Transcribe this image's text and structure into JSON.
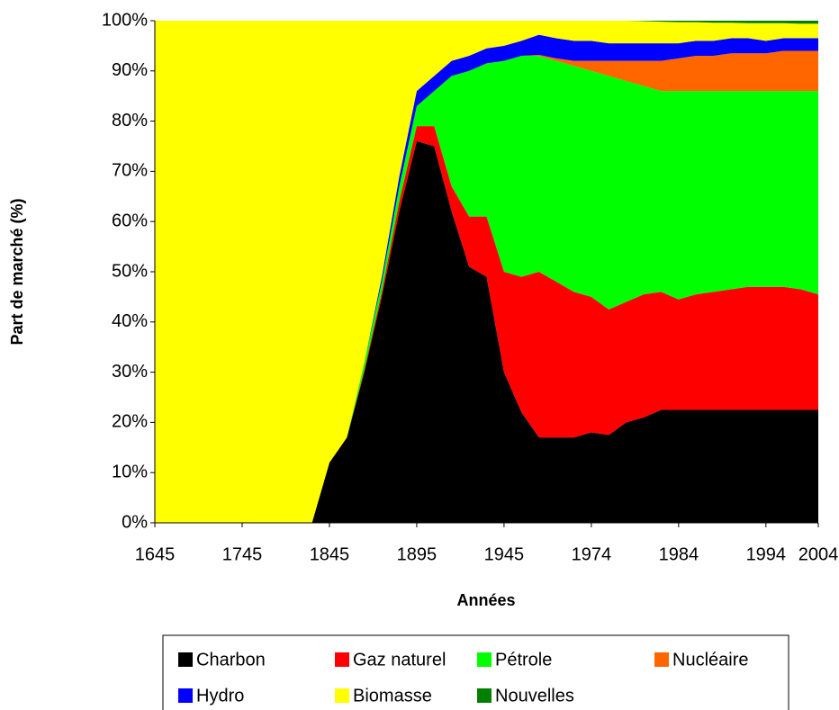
{
  "chart_data": {
    "type": "stacked_area",
    "x_label": "Années",
    "y_label": "Part de marché (%)",
    "categories": [
      "1645",
      null,
      null,
      null,
      null,
      "1745",
      null,
      null,
      null,
      null,
      "1845",
      null,
      null,
      null,
      null,
      "1895",
      null,
      null,
      null,
      null,
      "1945",
      null,
      null,
      null,
      null,
      "1974",
      null,
      null,
      null,
      null,
      "1984",
      null,
      null,
      null,
      null,
      "1994",
      null,
      null,
      "2004"
    ],
    "ylim": [
      0,
      100
    ],
    "yticks": [
      {
        "value": 0,
        "label": "0%"
      },
      {
        "value": 10,
        "label": "10%"
      },
      {
        "value": 20,
        "label": "20%"
      },
      {
        "value": 30,
        "label": "30%"
      },
      {
        "value": 40,
        "label": "40%"
      },
      {
        "value": 50,
        "label": "50%"
      },
      {
        "value": 60,
        "label": "60%"
      },
      {
        "value": 70,
        "label": "70%"
      },
      {
        "value": 80,
        "label": "80%"
      },
      {
        "value": 90,
        "label": "90%"
      },
      {
        "value": 100,
        "label": "100%"
      }
    ],
    "legend": "bottom",
    "series": [
      {
        "name": "Charbon",
        "color": "#000000",
        "values": [
          0,
          0,
          0,
          0,
          0,
          0,
          0,
          0,
          0,
          0,
          12,
          17,
          30,
          45,
          62,
          76,
          75,
          62,
          51,
          49,
          30,
          22,
          17,
          17,
          17,
          18,
          17.5,
          20,
          21,
          22.5,
          22.5,
          22.5,
          22.5,
          22.5,
          22.5,
          22.5,
          22.5,
          22.5,
          22.5
        ]
      },
      {
        "name": "Gaz naturel",
        "color": "#ff0000",
        "values": [
          0,
          0,
          0,
          0,
          0,
          0,
          0,
          0,
          0,
          0,
          0,
          0,
          0.5,
          1,
          2,
          3,
          4,
          5,
          10,
          12,
          20,
          27,
          33,
          31,
          29,
          27,
          25,
          24,
          24.5,
          23.5,
          22,
          23,
          23.5,
          24,
          24.5,
          24.5,
          24.5,
          24,
          23
        ]
      },
      {
        "name": "Pétrole",
        "color": "#00ff00",
        "values": [
          0,
          0,
          0,
          0,
          0,
          0,
          0,
          0,
          0,
          0,
          0,
          0,
          1.5,
          2,
          3,
          4,
          7,
          22,
          29,
          30.5,
          42,
          44,
          43,
          44,
          45,
          45,
          46.5,
          44,
          41.5,
          40,
          41.5,
          40.5,
          40,
          39.5,
          39,
          39,
          39,
          39.5,
          40.5
        ]
      },
      {
        "name": "Nucléaire",
        "color": "#ff6600",
        "values": [
          0,
          0,
          0,
          0,
          0,
          0,
          0,
          0,
          0,
          0,
          0,
          0,
          0,
          0,
          0,
          0,
          0,
          0,
          0,
          0,
          0,
          0,
          0.2,
          0.5,
          1,
          2,
          3,
          4,
          5,
          6,
          6.5,
          7,
          7,
          7.5,
          7.5,
          7.5,
          8,
          8,
          8
        ]
      },
      {
        "name": "Hydro",
        "color": "#0000ff",
        "values": [
          0,
          0,
          0,
          0,
          0,
          0,
          0,
          0,
          0,
          0,
          0,
          0,
          0,
          1,
          2,
          3,
          3,
          3,
          3,
          3,
          3,
          3,
          4,
          4,
          4,
          4,
          3.5,
          3.5,
          3.5,
          3.5,
          3,
          3,
          3,
          3,
          3,
          2.5,
          2.5,
          2.5,
          2.5
        ]
      },
      {
        "name": "Biomasse",
        "color": "#ffff00",
        "values": [
          100,
          100,
          100,
          100,
          100,
          100,
          100,
          100,
          100,
          100,
          88,
          83,
          68,
          51,
          31,
          14,
          11,
          8,
          7,
          5.5,
          5,
          4,
          2.8,
          3.5,
          4,
          4,
          4.5,
          4.5,
          4.4,
          4.3,
          4.2,
          3.7,
          3.6,
          3.1,
          3,
          3.5,
          3,
          2.9,
          2.9
        ]
      },
      {
        "name": "Nouvelles",
        "color": "#008000",
        "values": [
          0,
          0,
          0,
          0,
          0,
          0,
          0,
          0,
          0,
          0,
          0,
          0,
          0,
          0,
          0,
          0,
          0,
          0,
          0,
          0,
          0,
          0,
          0,
          0,
          0,
          0,
          0,
          0,
          0.1,
          0.2,
          0.3,
          0.3,
          0.4,
          0.4,
          0.5,
          0.5,
          0.5,
          0.6,
          0.6
        ]
      }
    ]
  }
}
